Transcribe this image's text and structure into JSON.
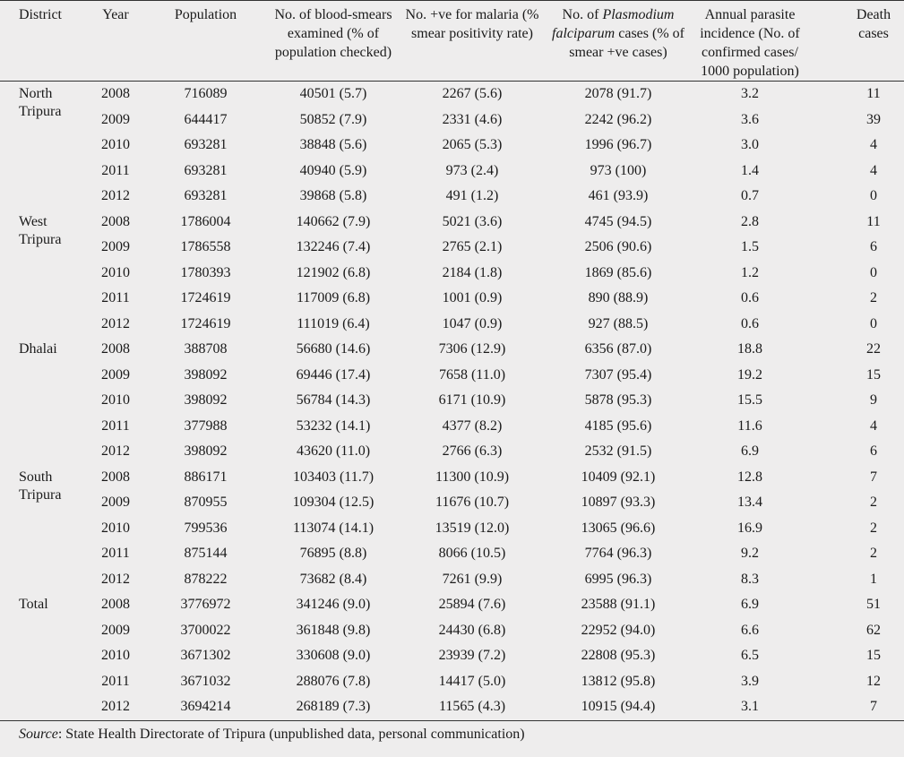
{
  "headers": [
    "District",
    "Year",
    "Population",
    "No. of blood-smears examined (% of population checked)",
    "No. +ve for malaria (% smear positivity rate)",
    "No. of Plasmodium falciparum cases (% of smear +ve cases)",
    "Annual parasite incidence (No. of confirmed cases/ 1000 population)",
    "Death cases"
  ],
  "groups": [
    {
      "district": "North Tripura",
      "rows": [
        [
          "2008",
          "716089",
          "40501 (5.7)",
          "2267 (5.6)",
          "2078 (91.7)",
          "3.2",
          "11"
        ],
        [
          "2009",
          "644417",
          "50852 (7.9)",
          "2331 (4.6)",
          "2242 (96.2)",
          "3.6",
          "39"
        ],
        [
          "2010",
          "693281",
          "38848 (5.6)",
          "2065 (5.3)",
          "1996 (96.7)",
          "3.0",
          "4"
        ],
        [
          "2011",
          "693281",
          "40940 (5.9)",
          "973 (2.4)",
          "973 (100)",
          "1.4",
          "4"
        ],
        [
          "2012",
          "693281",
          "39868 (5.8)",
          "491 (1.2)",
          "461 (93.9)",
          "0.7",
          "0"
        ]
      ]
    },
    {
      "district": "West Tripura",
      "rows": [
        [
          "2008",
          "1786004",
          "140662 (7.9)",
          "5021 (3.6)",
          "4745 (94.5)",
          "2.8",
          "11"
        ],
        [
          "2009",
          "1786558",
          "132246 (7.4)",
          "2765 (2.1)",
          "2506 (90.6)",
          "1.5",
          "6"
        ],
        [
          "2010",
          "1780393",
          "121902 (6.8)",
          "2184 (1.8)",
          "1869 (85.6)",
          "1.2",
          "0"
        ],
        [
          "2011",
          "1724619",
          "117009 (6.8)",
          "1001 (0.9)",
          "890 (88.9)",
          "0.6",
          "2"
        ],
        [
          "2012",
          "1724619",
          "111019 (6.4)",
          "1047 (0.9)",
          "927 (88.5)",
          "0.6",
          "0"
        ]
      ]
    },
    {
      "district": "Dhalai",
      "rows": [
        [
          "2008",
          "388708",
          "56680 (14.6)",
          "7306 (12.9)",
          "6356 (87.0)",
          "18.8",
          "22"
        ],
        [
          "2009",
          "398092",
          "69446 (17.4)",
          "7658 (11.0)",
          "7307 (95.4)",
          "19.2",
          "15"
        ],
        [
          "2010",
          "398092",
          "56784 (14.3)",
          "6171 (10.9)",
          "5878 (95.3)",
          "15.5",
          "9"
        ],
        [
          "2011",
          "377988",
          "53232 (14.1)",
          "4377 (8.2)",
          "4185 (95.6)",
          "11.6",
          "4"
        ],
        [
          "2012",
          "398092",
          "43620 (11.0)",
          "2766 (6.3)",
          "2532 (91.5)",
          "6.9",
          "6"
        ]
      ]
    },
    {
      "district": "South Tripura",
      "rows": [
        [
          "2008",
          "886171",
          "103403 (11.7)",
          "11300 (10.9)",
          "10409 (92.1)",
          "12.8",
          "7"
        ],
        [
          "2009",
          "870955",
          "109304 (12.5)",
          "11676 (10.7)",
          "10897 (93.3)",
          "13.4",
          "2"
        ],
        [
          "2010",
          "799536",
          "113074 (14.1)",
          "13519 (12.0)",
          "13065 (96.6)",
          "16.9",
          "2"
        ],
        [
          "2011",
          "875144",
          "76895 (8.8)",
          "8066 (10.5)",
          "7764 (96.3)",
          "9.2",
          "2"
        ],
        [
          "2012",
          "878222",
          "73682 (8.4)",
          "7261 (9.9)",
          "6995 (96.3)",
          "8.3",
          "1"
        ]
      ]
    },
    {
      "district": "Total",
      "rows": [
        [
          "2008",
          "3776972",
          "341246 (9.0)",
          "25894 (7.6)",
          "23588 (91.1)",
          "6.9",
          "51"
        ],
        [
          "2009",
          "3700022",
          "361848 (9.8)",
          "24430 (6.8)",
          "22952 (94.0)",
          "6.6",
          "62"
        ],
        [
          "2010",
          "3671302",
          "330608 (9.0)",
          "23939 (7.2)",
          "22808 (95.3)",
          "6.5",
          "15"
        ],
        [
          "2011",
          "3671032",
          "288076 (7.8)",
          "14417 (5.0)",
          "13812 (95.8)",
          "3.9",
          "12"
        ],
        [
          "2012",
          "3694214",
          "268189 (7.3)",
          "11565 (4.3)",
          "10915 (94.4)",
          "3.1",
          "7"
        ]
      ]
    }
  ],
  "source_label": "Source",
  "source_text": ": State Health Directorate of Tripura (unpublished data, personal communication)"
}
